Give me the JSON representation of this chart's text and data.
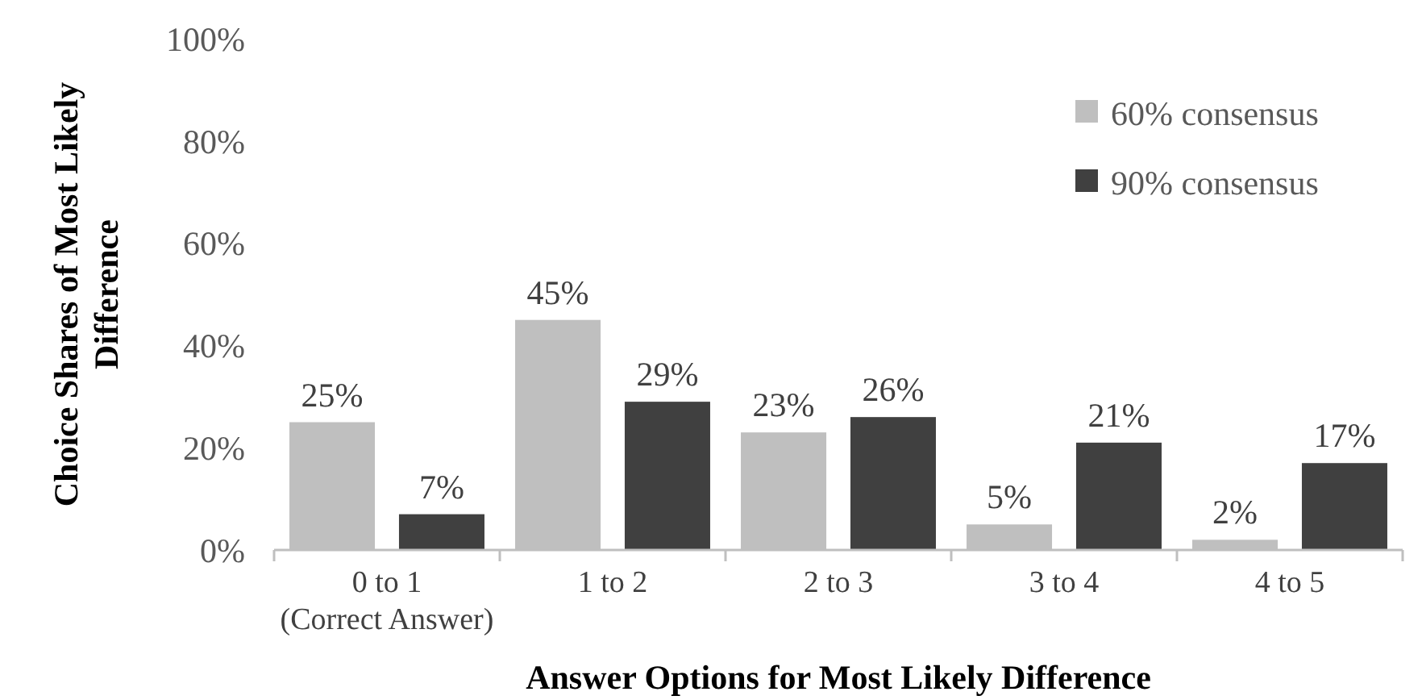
{
  "chart_data": {
    "type": "bar",
    "xlabel": "Answer Options for Most Likely Difference",
    "ylabel": "Choice Shares of Most Likely\nDifference",
    "categories": [
      "0 to 1\n(Correct Answer)",
      "1 to 2",
      "2 to 3",
      "3 to 4",
      "4 to 5"
    ],
    "series": [
      {
        "name": "60% consensus",
        "color": "#bfbfbf",
        "values": [
          25,
          45,
          23,
          5,
          2
        ],
        "value_labels": [
          "25%",
          "45%",
          "23%",
          "5%",
          "2%"
        ]
      },
      {
        "name": "90% consensus",
        "color": "#404040",
        "values": [
          7,
          29,
          26,
          21,
          17
        ],
        "value_labels": [
          "7%",
          "29%",
          "26%",
          "21%",
          "17%"
        ]
      }
    ],
    "ylim": [
      0,
      100
    ],
    "yticks": [
      {
        "value": 0,
        "label": "0%"
      },
      {
        "value": 20,
        "label": "20%"
      },
      {
        "value": 40,
        "label": "40%"
      },
      {
        "value": 60,
        "label": "60%"
      },
      {
        "value": 80,
        "label": "80%"
      },
      {
        "value": 100,
        "label": "100%"
      }
    ],
    "grid": false,
    "legend": "top right"
  }
}
